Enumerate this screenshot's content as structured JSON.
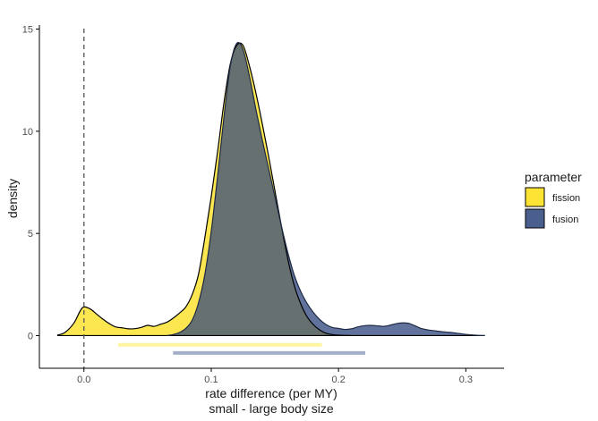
{
  "chart_data": {
    "type": "area",
    "subtype": "density",
    "xlabel": "rate difference (per MY)",
    "xlabel_sub": "small - large body size",
    "ylabel": "density",
    "xlim": [
      -0.035,
      0.33
    ],
    "ylim": [
      -1.6,
      15.2
    ],
    "x_ticks": [
      0.0,
      0.1,
      0.2,
      0.3
    ],
    "x_tick_labels": [
      "0.0",
      "0.1",
      "0.2",
      "0.3"
    ],
    "y_ticks": [
      0,
      5,
      10,
      15
    ],
    "y_tick_labels": [
      "0",
      "5",
      "10",
      "15"
    ],
    "vline": {
      "x": 0.0,
      "style": "dashed"
    },
    "grid": false,
    "legend": {
      "title": "parameter",
      "position": "right"
    },
    "series": [
      {
        "name": "fission",
        "color": "#FDE333",
        "points": [
          [
            -0.021,
            0.02
          ],
          [
            -0.015,
            0.15
          ],
          [
            -0.008,
            0.6
          ],
          [
            -0.003,
            1.2
          ],
          [
            0.0,
            1.4
          ],
          [
            0.005,
            1.3
          ],
          [
            0.01,
            1.05
          ],
          [
            0.015,
            0.8
          ],
          [
            0.02,
            0.58
          ],
          [
            0.025,
            0.42
          ],
          [
            0.03,
            0.38
          ],
          [
            0.035,
            0.33
          ],
          [
            0.04,
            0.34
          ],
          [
            0.045,
            0.4
          ],
          [
            0.05,
            0.5
          ],
          [
            0.055,
            0.45
          ],
          [
            0.06,
            0.55
          ],
          [
            0.065,
            0.65
          ],
          [
            0.07,
            0.85
          ],
          [
            0.075,
            1.1
          ],
          [
            0.08,
            1.4
          ],
          [
            0.085,
            2.0
          ],
          [
            0.09,
            3.0
          ],
          [
            0.095,
            4.8
          ],
          [
            0.1,
            6.8
          ],
          [
            0.105,
            9.0
          ],
          [
            0.11,
            11.4
          ],
          [
            0.115,
            13.3
          ],
          [
            0.12,
            14.2
          ],
          [
            0.125,
            14.2
          ],
          [
            0.13,
            13.2
          ],
          [
            0.135,
            11.9
          ],
          [
            0.14,
            10.4
          ],
          [
            0.145,
            8.8
          ],
          [
            0.15,
            7.1
          ],
          [
            0.155,
            5.4
          ],
          [
            0.16,
            3.8
          ],
          [
            0.165,
            2.5
          ],
          [
            0.17,
            1.6
          ],
          [
            0.175,
            0.95
          ],
          [
            0.18,
            0.55
          ],
          [
            0.185,
            0.28
          ],
          [
            0.19,
            0.12
          ],
          [
            0.195,
            0.05
          ],
          [
            0.2,
            0.02
          ],
          [
            0.21,
            0.0
          ]
        ],
        "hdi": [
          0.027,
          0.187
        ]
      },
      {
        "name": "fusion",
        "color": "#4B5F8F",
        "points": [
          [
            0.065,
            0.0
          ],
          [
            0.07,
            0.05
          ],
          [
            0.075,
            0.15
          ],
          [
            0.08,
            0.35
          ],
          [
            0.085,
            0.75
          ],
          [
            0.09,
            1.6
          ],
          [
            0.095,
            3.0
          ],
          [
            0.1,
            5.1
          ],
          [
            0.105,
            7.8
          ],
          [
            0.11,
            10.7
          ],
          [
            0.115,
            13.2
          ],
          [
            0.12,
            14.3
          ],
          [
            0.125,
            14.0
          ],
          [
            0.13,
            12.7
          ],
          [
            0.135,
            11.1
          ],
          [
            0.14,
            9.6
          ],
          [
            0.145,
            8.2
          ],
          [
            0.15,
            6.8
          ],
          [
            0.155,
            5.4
          ],
          [
            0.16,
            4.1
          ],
          [
            0.165,
            3.0
          ],
          [
            0.17,
            2.2
          ],
          [
            0.175,
            1.6
          ],
          [
            0.18,
            1.15
          ],
          [
            0.185,
            0.8
          ],
          [
            0.19,
            0.55
          ],
          [
            0.195,
            0.4
          ],
          [
            0.2,
            0.35
          ],
          [
            0.205,
            0.3
          ],
          [
            0.21,
            0.33
          ],
          [
            0.215,
            0.42
          ],
          [
            0.22,
            0.48
          ],
          [
            0.225,
            0.5
          ],
          [
            0.23,
            0.48
          ],
          [
            0.235,
            0.45
          ],
          [
            0.24,
            0.5
          ],
          [
            0.245,
            0.58
          ],
          [
            0.25,
            0.62
          ],
          [
            0.255,
            0.6
          ],
          [
            0.26,
            0.48
          ],
          [
            0.265,
            0.35
          ],
          [
            0.27,
            0.28
          ],
          [
            0.275,
            0.24
          ],
          [
            0.28,
            0.2
          ],
          [
            0.285,
            0.17
          ],
          [
            0.29,
            0.14
          ],
          [
            0.295,
            0.1
          ],
          [
            0.3,
            0.06
          ],
          [
            0.305,
            0.03
          ],
          [
            0.31,
            0.01
          ],
          [
            0.315,
            0.0
          ]
        ],
        "hdi": [
          0.07,
          0.221
        ]
      }
    ],
    "baseline": {
      "y": 0,
      "x_range": [
        -0.021,
        0.315
      ]
    }
  }
}
